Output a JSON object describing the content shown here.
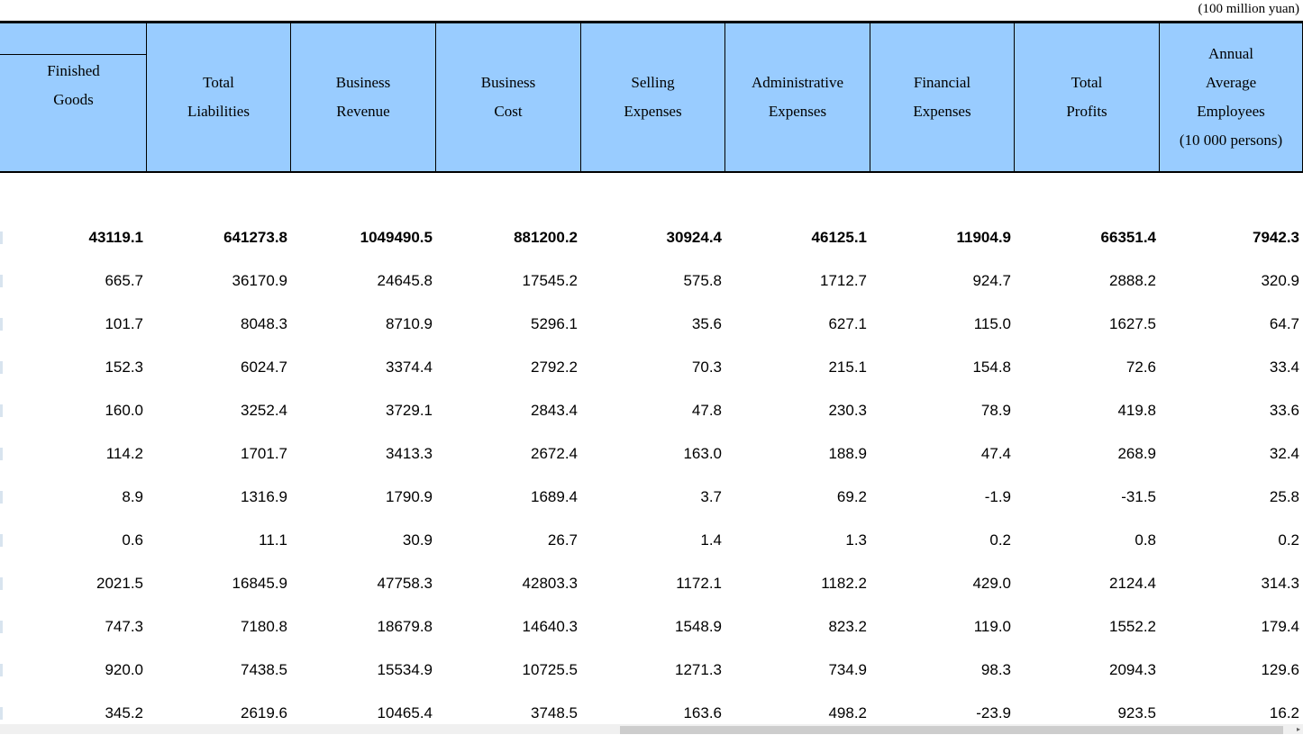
{
  "unit_note": "(100 million yuan)",
  "columns": [
    "Finished\nGoods",
    "Total\nLiabilities",
    "Business\nRevenue",
    "Business\nCost",
    "Selling\nExpenses",
    "Administrative\nExpenses",
    "Financial\nExpenses",
    "Total\nProfits",
    "Annual\nAverage\nEmployees\n(10 000 persons)"
  ],
  "rows": [
    [
      "43119.1",
      "641273.8",
      "1049490.5",
      "881200.2",
      "30924.4",
      "46125.1",
      "11904.9",
      "66351.4",
      "7942.3"
    ],
    [
      "665.7",
      "36170.9",
      "24645.8",
      "17545.2",
      "575.8",
      "1712.7",
      "924.7",
      "2888.2",
      "320.9"
    ],
    [
      "101.7",
      "8048.3",
      "8710.9",
      "5296.1",
      "35.6",
      "627.1",
      "115.0",
      "1627.5",
      "64.7"
    ],
    [
      "152.3",
      "6024.7",
      "3374.4",
      "2792.2",
      "70.3",
      "215.1",
      "154.8",
      "72.6",
      "33.4"
    ],
    [
      "160.0",
      "3252.4",
      "3729.1",
      "2843.4",
      "47.8",
      "230.3",
      "78.9",
      "419.8",
      "33.6"
    ],
    [
      "114.2",
      "1701.7",
      "3413.3",
      "2672.4",
      "163.0",
      "188.9",
      "47.4",
      "268.9",
      "32.4"
    ],
    [
      "8.9",
      "1316.9",
      "1790.9",
      "1689.4",
      "3.7",
      "69.2",
      "-1.9",
      "-31.5",
      "25.8"
    ],
    [
      "0.6",
      "11.1",
      "30.9",
      "26.7",
      "1.4",
      "1.3",
      "0.2",
      "0.8",
      "0.2"
    ],
    [
      "2021.5",
      "16845.9",
      "47758.3",
      "42803.3",
      "1172.1",
      "1182.2",
      "429.0",
      "2124.4",
      "314.3"
    ],
    [
      "747.3",
      "7180.8",
      "18679.8",
      "14640.3",
      "1548.9",
      "823.2",
      "119.0",
      "1552.2",
      "179.4"
    ],
    [
      "920.0",
      "7438.5",
      "15534.9",
      "10725.5",
      "1271.3",
      "734.9",
      "98.3",
      "2094.3",
      "129.6"
    ],
    [
      "345.2",
      "2619.6",
      "10465.4",
      "3748.5",
      "163.6",
      "498.2",
      "-23.9",
      "923.5",
      "16.2"
    ]
  ],
  "colors": {
    "header_bg": "#99ccff"
  }
}
